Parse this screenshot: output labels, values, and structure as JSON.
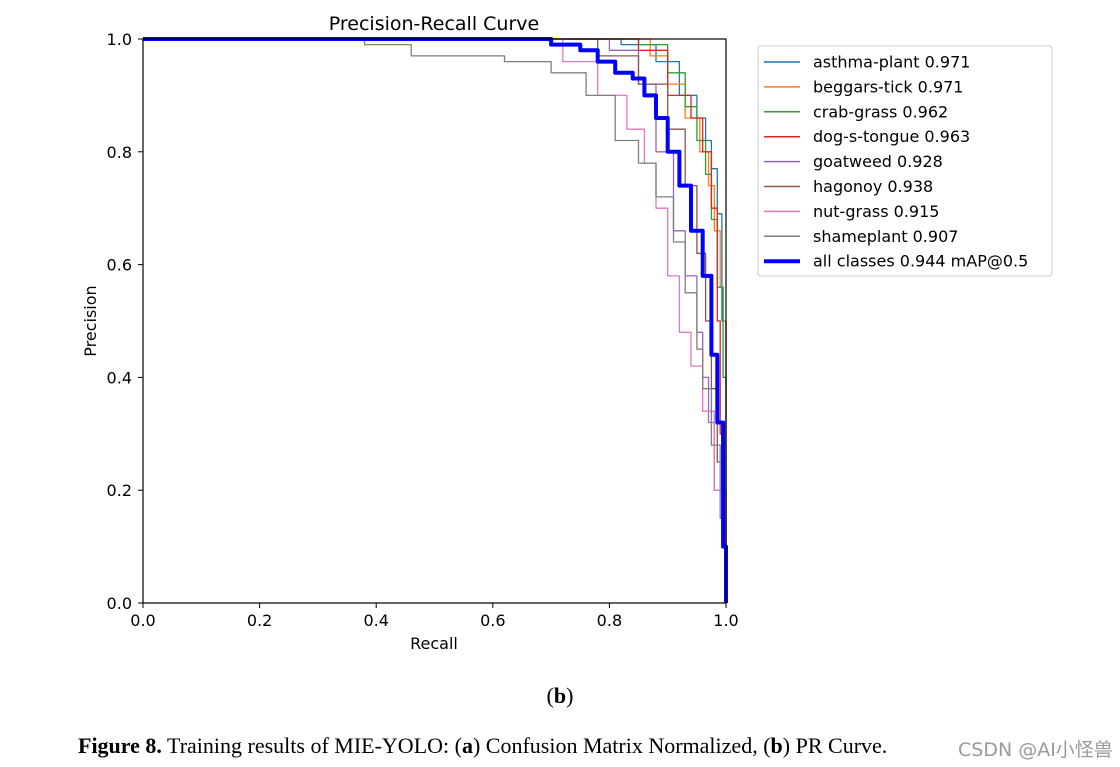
{
  "chart_data": {
    "type": "line",
    "title": "Precision-Recall Curve",
    "xlabel": "Recall",
    "ylabel": "Precision",
    "xlim": [
      0,
      1
    ],
    "ylim": [
      0,
      1
    ],
    "xticks": [
      "0.0",
      "0.2",
      "0.4",
      "0.6",
      "0.8",
      "1.0"
    ],
    "yticks": [
      "0.0",
      "0.2",
      "0.4",
      "0.6",
      "0.8",
      "1.0"
    ],
    "legend_position": "outside-right-top",
    "series": [
      {
        "name": "asthma-plant",
        "ap": "0.971",
        "label": "asthma-plant 0.971",
        "color": "#1f77b4",
        "bold": false,
        "x": [
          0,
          0.6,
          0.82,
          0.88,
          0.92,
          0.95,
          0.965,
          0.975,
          0.985,
          0.993,
          1.0
        ],
        "y": [
          1.0,
          1.0,
          0.99,
          0.96,
          0.9,
          0.86,
          0.82,
          0.77,
          0.69,
          0.5,
          0.0
        ]
      },
      {
        "name": "beggars-tick",
        "ap": "0.971",
        "label": "beggars-tick 0.971",
        "color": "#ff7f0e",
        "bold": false,
        "x": [
          0,
          0.85,
          0.87,
          0.9,
          0.93,
          0.955,
          0.97,
          0.98,
          0.99,
          0.995,
          1.0
        ],
        "y": [
          1.0,
          1.0,
          0.97,
          0.92,
          0.86,
          0.8,
          0.74,
          0.66,
          0.56,
          0.5,
          0.0
        ]
      },
      {
        "name": "crab-grass",
        "ap": "0.962",
        "label": "crab-grass 0.962",
        "color": "#2ca02c",
        "bold": false,
        "x": [
          0,
          0.7,
          0.85,
          0.9,
          0.93,
          0.95,
          0.965,
          0.975,
          0.985,
          0.995,
          1.0
        ],
        "y": [
          1.0,
          1.0,
          0.99,
          0.94,
          0.88,
          0.82,
          0.76,
          0.68,
          0.56,
          0.4,
          0.0
        ]
      },
      {
        "name": "dog-s-tongue",
        "ap": "0.963",
        "label": "dog-s-tongue 0.963",
        "color": "#d62728",
        "bold": false,
        "x": [
          0,
          0.72,
          0.85,
          0.9,
          0.94,
          0.96,
          0.975,
          0.985,
          0.99,
          0.995,
          1.0
        ],
        "y": [
          1.0,
          1.0,
          0.98,
          0.9,
          0.86,
          0.8,
          0.7,
          0.5,
          0.3,
          0.2,
          0.0
        ]
      },
      {
        "name": "goatweed",
        "ap": "0.928",
        "label": "goatweed 0.928",
        "color": "#9467bd",
        "bold": false,
        "x": [
          0,
          0.7,
          0.8,
          0.85,
          0.88,
          0.91,
          0.93,
          0.95,
          0.96,
          0.97,
          0.98,
          0.99,
          1.0
        ],
        "y": [
          1.0,
          1.0,
          0.98,
          0.92,
          0.8,
          0.66,
          0.58,
          0.48,
          0.4,
          0.32,
          0.2,
          0.15,
          0.0
        ]
      },
      {
        "name": "hagonoy",
        "ap": "0.938",
        "label": "hagonoy 0.938",
        "color": "#8c564b",
        "bold": false,
        "x": [
          0,
          0.65,
          0.78,
          0.85,
          0.9,
          0.93,
          0.95,
          0.965,
          0.975,
          0.985,
          0.995,
          1.0
        ],
        "y": [
          1.0,
          1.0,
          0.97,
          0.92,
          0.84,
          0.74,
          0.62,
          0.5,
          0.38,
          0.25,
          0.12,
          0.0
        ]
      },
      {
        "name": "nut-grass",
        "ap": "0.915",
        "label": "nut-grass 0.915",
        "color": "#e377c2",
        "bold": false,
        "x": [
          0,
          0.58,
          0.72,
          0.78,
          0.83,
          0.86,
          0.88,
          0.9,
          0.92,
          0.94,
          0.96,
          0.98,
          1.0
        ],
        "y": [
          1.0,
          1.0,
          0.96,
          0.9,
          0.84,
          0.78,
          0.7,
          0.58,
          0.48,
          0.42,
          0.34,
          0.2,
          0.0
        ]
      },
      {
        "name": "shameplant",
        "ap": "0.907",
        "label": "shameplant 0.907",
        "color": "#7f7f7f",
        "bold": false,
        "x": [
          0,
          0.38,
          0.46,
          0.62,
          0.7,
          0.76,
          0.81,
          0.85,
          0.88,
          0.91,
          0.93,
          0.95,
          0.96,
          0.975,
          0.99,
          1.0
        ],
        "y": [
          1.0,
          0.99,
          0.97,
          0.96,
          0.94,
          0.9,
          0.82,
          0.78,
          0.72,
          0.64,
          0.55,
          0.45,
          0.38,
          0.28,
          0.2,
          0.0
        ]
      },
      {
        "name": "all classes",
        "ap": "0.944",
        "label": "all classes 0.944 mAP@0.5",
        "color": "#0000ff",
        "bold": true,
        "x": [
          0,
          0.6,
          0.7,
          0.75,
          0.78,
          0.81,
          0.84,
          0.86,
          0.88,
          0.9,
          0.92,
          0.94,
          0.96,
          0.975,
          0.985,
          0.995,
          1.0
        ],
        "y": [
          1.0,
          1.0,
          0.99,
          0.98,
          0.96,
          0.94,
          0.93,
          0.9,
          0.86,
          0.8,
          0.74,
          0.66,
          0.58,
          0.44,
          0.32,
          0.1,
          0.0
        ]
      }
    ]
  },
  "subfigure_label": {
    "open": "(",
    "letter": "b",
    "close": ")"
  },
  "caption": {
    "lead": "Figure 8.",
    "text1": " Training results of MIE-YOLO: (",
    "a": "a",
    "text2": ") Confusion Matrix Normalized, (",
    "b": "b",
    "text3": ") PR Curve."
  },
  "watermark": "CSDN @AI小怪兽"
}
